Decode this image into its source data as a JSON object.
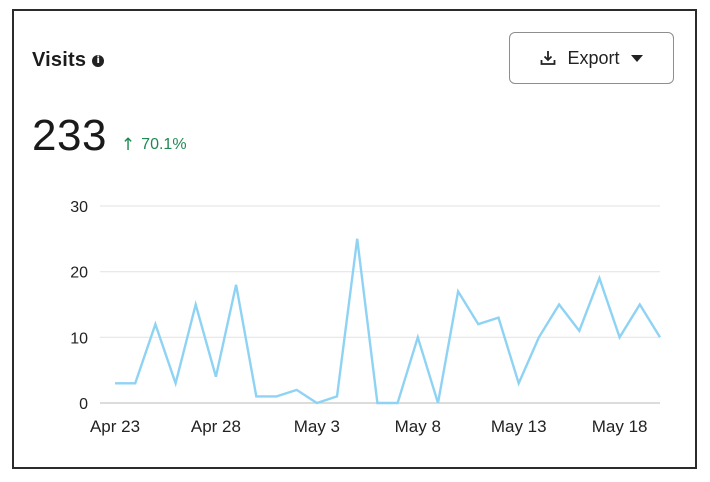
{
  "header": {
    "title": "Visits",
    "info_icon": "info-icon",
    "export_label": "Export",
    "export_icon": "download-icon",
    "export_caret": "caret-down-icon"
  },
  "metric": {
    "value": "233",
    "change": "70.1%",
    "change_direction": "up",
    "change_color": "#1e8a52"
  },
  "chart_data": {
    "type": "line",
    "x": [
      "Apr 23",
      "Apr 24",
      "Apr 25",
      "Apr 26",
      "Apr 27",
      "Apr 28",
      "Apr 29",
      "Apr 30",
      "May 1",
      "May 2",
      "May 3",
      "May 4",
      "May 5",
      "May 6",
      "May 7",
      "May 8",
      "May 9",
      "May 10",
      "May 11",
      "May 12",
      "May 13",
      "May 14",
      "May 15",
      "May 16",
      "May 17",
      "May 18",
      "May 19",
      "May 20"
    ],
    "series": [
      {
        "values": [
          3,
          3,
          12,
          3,
          15,
          4,
          18,
          1,
          1,
          2,
          0,
          1,
          25,
          0,
          0,
          10,
          0,
          17,
          12,
          13,
          3,
          10,
          15,
          11,
          19,
          10,
          15,
          10
        ],
        "color": "#8fd3f4"
      }
    ],
    "x_tick_labels": [
      "Apr 23",
      "Apr 28",
      "May 3",
      "May 8",
      "May 13",
      "May 18"
    ],
    "y_ticks": [
      0,
      10,
      20,
      30
    ],
    "ylim": [
      0,
      30
    ],
    "grid": true,
    "legend": "none"
  }
}
